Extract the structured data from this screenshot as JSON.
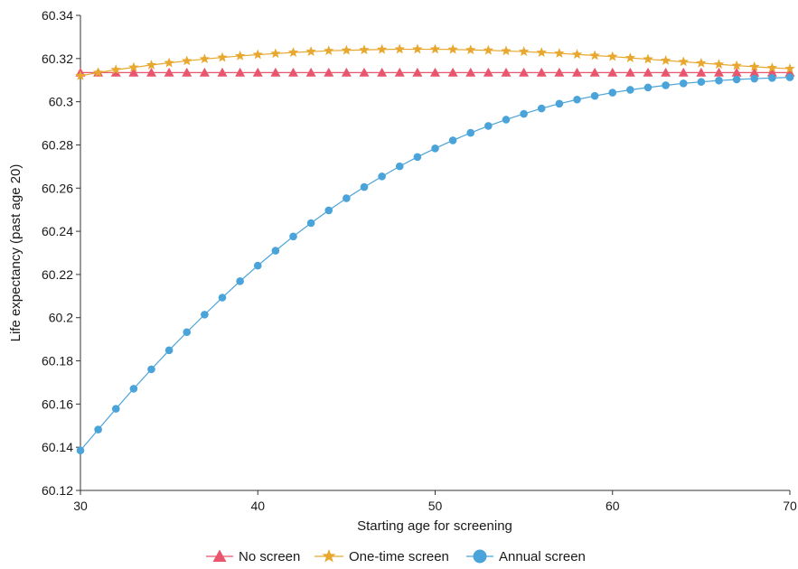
{
  "chart_data": {
    "type": "line",
    "title": "",
    "xlabel": "Starting age for screening",
    "ylabel": "Life expectancy (past age 20)",
    "xlim": [
      30,
      70
    ],
    "ylim": [
      60.12,
      60.34
    ],
    "x_ticks": [
      30,
      40,
      50,
      60,
      70
    ],
    "x_tick_labels": [
      "30",
      "40",
      "50",
      "60",
      "70"
    ],
    "y_ticks": [
      60.12,
      60.14,
      60.16,
      60.18,
      60.2,
      60.22,
      60.24,
      60.26,
      60.28,
      60.3,
      60.32,
      60.34
    ],
    "y_tick_labels": [
      "60.12",
      "60.14",
      "60.16",
      "60.18",
      "60.2",
      "60.22",
      "60.24",
      "60.26",
      "60.28",
      "60.3",
      "60.32",
      "60.34"
    ],
    "grid": false,
    "legend_position": "bottom",
    "x": [
      30,
      31,
      32,
      33,
      34,
      35,
      36,
      37,
      38,
      39,
      40,
      41,
      42,
      43,
      44,
      45,
      46,
      47,
      48,
      49,
      50,
      51,
      52,
      53,
      54,
      55,
      56,
      57,
      58,
      59,
      60,
      61,
      62,
      63,
      64,
      65,
      66,
      67,
      68,
      69,
      70
    ],
    "series": [
      {
        "name": "No screen",
        "marker": "triangle",
        "color": "#e8556d",
        "values": [
          60.3135,
          60.3135,
          60.3135,
          60.3135,
          60.3135,
          60.3135,
          60.3135,
          60.3135,
          60.3135,
          60.3135,
          60.3135,
          60.3135,
          60.3135,
          60.3135,
          60.3135,
          60.3135,
          60.3135,
          60.3135,
          60.3135,
          60.3135,
          60.3135,
          60.3135,
          60.3135,
          60.3135,
          60.3135,
          60.3135,
          60.3135,
          60.3135,
          60.3135,
          60.3135,
          60.3135,
          60.3135,
          60.3135,
          60.3135,
          60.3135,
          60.3135,
          60.3135,
          60.3135,
          60.3135,
          60.3135,
          60.3135
        ]
      },
      {
        "name": "One-time screen",
        "marker": "star",
        "color": "#e8a830",
        "values": [
          60.312,
          60.3135,
          60.3148,
          60.3159,
          60.317,
          60.318,
          60.3189,
          60.3198,
          60.3205,
          60.3212,
          60.3218,
          60.3223,
          60.3228,
          60.3232,
          60.3236,
          60.3238,
          60.324,
          60.3242,
          60.3243,
          60.3243,
          60.3243,
          60.3242,
          60.324,
          60.3238,
          60.3235,
          60.3232,
          60.3228,
          60.3224,
          60.3219,
          60.3214,
          60.3209,
          60.3203,
          60.3197,
          60.3191,
          60.3185,
          60.3179,
          60.3173,
          60.3167,
          60.3162,
          60.3157,
          60.3153
        ]
      },
      {
        "name": "Annual screen",
        "marker": "circle",
        "color": "#4aa3d9",
        "values": [
          60.1385,
          60.1482,
          60.1578,
          60.1671,
          60.1761,
          60.1849,
          60.1933,
          60.2014,
          60.2093,
          60.2169,
          60.2241,
          60.231,
          60.2376,
          60.2438,
          60.2497,
          60.2553,
          60.2605,
          60.2654,
          60.2701,
          60.2744,
          60.2784,
          60.2821,
          60.2856,
          60.2888,
          60.2917,
          60.2944,
          60.2969,
          60.2991,
          60.301,
          60.3027,
          60.3042,
          60.3055,
          60.3066,
          60.3076,
          60.3085,
          60.3092,
          60.3098,
          60.3103,
          60.3107,
          60.311,
          60.3113
        ]
      }
    ]
  }
}
